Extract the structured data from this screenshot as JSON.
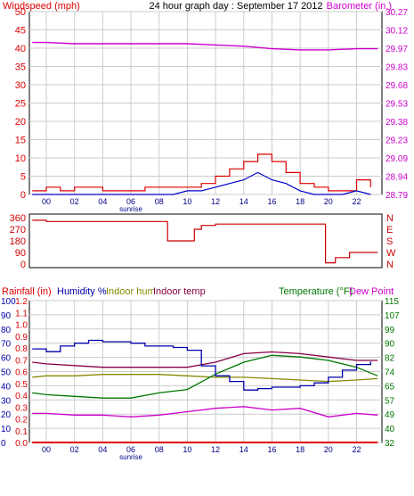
{
  "colors": {
    "wind": "#dd0000",
    "gust_avg": "#0000cc",
    "barometer": "#cc00cc",
    "direction": "#cc0000",
    "rainfall": "#dd0000",
    "humidity": "#0000aa",
    "indoor_hum": "#888800",
    "indoor_temp": "#880044",
    "temperature": "#007700",
    "dew_point": "#cc00cc",
    "grid": "#cccccc",
    "axis": "#000000",
    "hours": "#000088"
  },
  "chart_data": [
    {
      "type": "line",
      "title": "24 hour graph day : September 17 2012",
      "left_label": "Windspeed (mph)",
      "right_label": "Barometer (in.)",
      "x_tick_labels": [
        "00",
        "02",
        "04",
        "06",
        "08",
        "10",
        "12",
        "14",
        "16",
        "18",
        "20",
        "22"
      ],
      "annotation": "sunrise",
      "ylim_left": [
        0,
        50
      ],
      "left_ticks": [
        "0",
        "5",
        "10",
        "15",
        "20",
        "25",
        "30",
        "35",
        "40",
        "45",
        "50"
      ],
      "ylim_right": [
        28.79,
        30.27
      ],
      "right_ticks": [
        "28.79",
        "28.94",
        "29.09",
        "29.23",
        "29.38",
        "29.53",
        "29.68",
        "29.83",
        "29.97",
        "30.12",
        "30.27"
      ],
      "grid": true,
      "series": [
        {
          "key": "wind_gust",
          "x": [
            -1,
            0,
            1,
            2,
            3,
            4,
            5,
            6,
            7,
            8,
            9,
            10,
            11,
            12,
            13,
            14,
            15,
            16,
            17,
            18,
            19,
            20,
            21,
            22,
            23
          ],
          "values": [
            1,
            2,
            1,
            2,
            2,
            1,
            1,
            1,
            2,
            2,
            2,
            2,
            3,
            5,
            7,
            9,
            11,
            9,
            6,
            3,
            2,
            1,
            1,
            4,
            2
          ]
        },
        {
          "key": "wind_avg",
          "x": [
            -1,
            0,
            1,
            2,
            3,
            4,
            5,
            6,
            7,
            8,
            9,
            10,
            11,
            12,
            13,
            14,
            15,
            16,
            17,
            18,
            19,
            20,
            21,
            22,
            23
          ],
          "values": [
            0,
            0,
            0,
            0,
            0,
            0,
            0,
            0,
            0,
            0,
            0,
            1,
            1,
            2,
            3,
            4,
            6,
            4,
            3,
            1,
            0,
            0,
            0,
            1,
            0
          ]
        },
        {
          "key": "barometer",
          "x": [
            -1,
            0,
            2,
            4,
            6,
            8,
            10,
            12,
            14,
            16,
            18,
            20,
            22,
            23.5
          ],
          "values": [
            30.02,
            30.02,
            30.01,
            30.01,
            30.01,
            30.01,
            30.01,
            30.0,
            29.99,
            29.97,
            29.96,
            29.96,
            29.97,
            29.97
          ]
        }
      ]
    },
    {
      "type": "line",
      "left_ticks": [
        "0",
        "90",
        "180",
        "270",
        "360"
      ],
      "right_ticks": [
        "N",
        "W",
        "S",
        "E",
        "N"
      ],
      "ylim": [
        0,
        360
      ],
      "series": [
        {
          "key": "wind_direction",
          "x": [
            -1,
            0,
            8.5,
            8.6,
            10,
            10.5,
            11,
            12,
            14,
            16,
            18,
            19.7,
            19.8,
            20.5,
            21.5,
            23.5
          ],
          "values": [
            340,
            330,
            330,
            180,
            180,
            270,
            300,
            310,
            310,
            310,
            310,
            310,
            10,
            50,
            90,
            90
          ]
        }
      ]
    },
    {
      "type": "line",
      "labels": [
        "Rainfall (in)",
        "Humidity %",
        "Indoor hum",
        "Indoor temp",
        "Temperature (°F)",
        "Dew Point"
      ],
      "x_tick_labels": [
        "00",
        "02",
        "04",
        "06",
        "08",
        "10",
        "12",
        "14",
        "16",
        "18",
        "20",
        "22"
      ],
      "annotation": "sunrise",
      "rain_ticks": [
        "0.0",
        "0.1",
        "0.2",
        "0.3",
        "0.4",
        "0.5",
        "0.6",
        "0.7",
        "0.8",
        "0.9",
        "1.0",
        "1.1",
        "1.2"
      ],
      "humidity_ticks": [
        "0",
        "10",
        "20",
        "30",
        "40",
        "50",
        "60",
        "70",
        "80",
        "90",
        "100"
      ],
      "temp_ticks": [
        "32",
        "40",
        "49",
        "57",
        "65",
        "74",
        "82",
        "90",
        "99",
        "107",
        "115"
      ],
      "ylim_humidity": [
        0,
        100
      ],
      "ylim_temp": [
        32,
        115
      ],
      "grid": true,
      "series": [
        {
          "key": "rainfall",
          "x": [
            -1,
            23.5
          ],
          "values": [
            0,
            0
          ]
        },
        {
          "key": "humidity",
          "x": [
            -1,
            0,
            1,
            2,
            3,
            4,
            5,
            6,
            7,
            8,
            9,
            10,
            11,
            12,
            13,
            14,
            15,
            16,
            17,
            18,
            19,
            20,
            21,
            22,
            23
          ],
          "values": [
            66,
            64,
            68,
            70,
            72,
            71,
            71,
            70,
            68,
            68,
            67,
            65,
            54,
            47,
            43,
            37,
            38,
            39,
            39,
            40,
            42,
            46,
            51,
            55,
            57
          ]
        },
        {
          "key": "indoor_hum",
          "x": [
            -1,
            0,
            2,
            4,
            6,
            8,
            10,
            12,
            14,
            16,
            18,
            20,
            22,
            23.5
          ],
          "values": [
            46,
            47,
            47,
            48,
            48,
            48,
            47,
            46,
            46,
            45,
            44,
            43,
            44,
            45
          ]
        },
        {
          "key": "indoor_temp",
          "x": [
            -1,
            0,
            2,
            4,
            6,
            8,
            10,
            12,
            14,
            16,
            18,
            20,
            22,
            23.5
          ],
          "values": [
            79,
            78,
            77,
            76,
            76,
            76,
            76,
            79,
            84,
            85,
            84,
            82,
            80,
            80
          ]
        },
        {
          "key": "temperature",
          "x": [
            -1,
            0,
            2,
            4,
            6,
            8,
            10,
            12,
            14,
            16,
            18,
            20,
            22,
            23.5
          ],
          "values": [
            61,
            60,
            59,
            58,
            58,
            61,
            63,
            72,
            79,
            83,
            82,
            80,
            76,
            71
          ]
        },
        {
          "key": "dew_point",
          "x": [
            -1,
            0,
            2,
            4,
            6,
            8,
            10,
            12,
            14,
            16,
            18,
            20,
            22,
            23.5
          ],
          "values": [
            49,
            49,
            48,
            48,
            47,
            48,
            50,
            52,
            53,
            51,
            52,
            47,
            49,
            48
          ]
        }
      ]
    }
  ]
}
